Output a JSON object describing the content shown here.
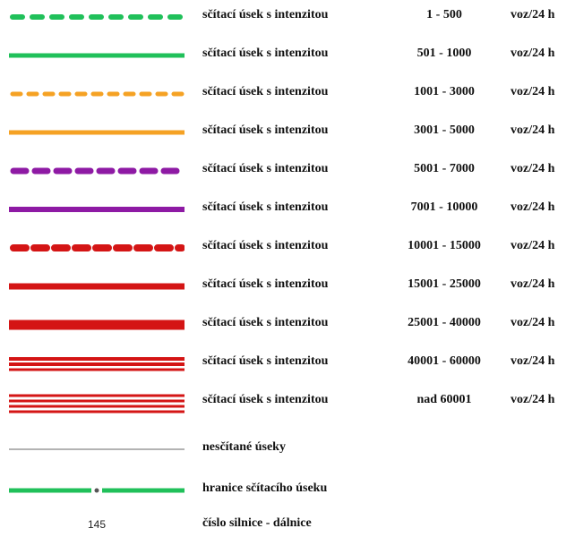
{
  "colors": {
    "green": "#20c05a",
    "orange": "#f5a224",
    "purple": "#8e1aa4",
    "red": "#d41515",
    "gray": "#9a9a9a"
  },
  "rows": [
    {
      "label": "sčítací úsek s intenzitou",
      "range": "1 - 500",
      "unit": "voz/24 h",
      "symbol": "green-dashed-line"
    },
    {
      "label": "sčítací úsek s intenzitou",
      "range": "501 - 1000",
      "unit": "voz/24 h",
      "symbol": "green-solid-line"
    },
    {
      "label": "sčítací úsek s intenzitou",
      "range": "1001 - 3000",
      "unit": "voz/24 h",
      "symbol": "orange-dashed-line"
    },
    {
      "label": "sčítací úsek s intenzitou",
      "range": "3001 - 5000",
      "unit": "voz/24 h",
      "symbol": "orange-solid-line"
    },
    {
      "label": "sčítací úsek s intenzitou",
      "range": "5001 - 7000",
      "unit": "voz/24 h",
      "symbol": "purple-dashed-line"
    },
    {
      "label": "sčítací úsek s intenzitou",
      "range": "7001 - 10000",
      "unit": "voz/24 h",
      "symbol": "purple-solid-line"
    },
    {
      "label": "sčítací úsek s intenzitou",
      "range": "10001 - 15000",
      "unit": "voz/24 h",
      "symbol": "red-dashed-line"
    },
    {
      "label": "sčítací úsek s intenzitou",
      "range": "15001 - 25000",
      "unit": "voz/24 h",
      "symbol": "red-solid-line"
    },
    {
      "label": "sčítací úsek s intenzitou",
      "range": "25001 - 40000",
      "unit": "voz/24 h",
      "symbol": "red-thick-line"
    },
    {
      "label": "sčítací úsek s intenzitou",
      "range": "40001 - 60000",
      "unit": "voz/24 h",
      "symbol": "red-double-line"
    },
    {
      "label": "sčítací úsek s intenzitou",
      "range": "nad 60001",
      "unit": "voz/24 h",
      "symbol": "red-triple-line"
    }
  ],
  "extras": [
    {
      "label": "nesčítané úseky",
      "symbol": "gray-thin-line"
    },
    {
      "label": "hranice sčítacího úseku",
      "symbol": "green-line-with-node"
    },
    {
      "label": "číslo silnice - dálnice",
      "symbol": "road-number",
      "number": "145"
    }
  ]
}
